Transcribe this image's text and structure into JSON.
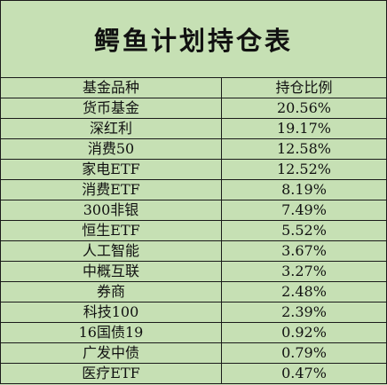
{
  "title": "鳄鱼计划持仓表",
  "headers": {
    "name": "基金品种",
    "ratio": "持仓比例"
  },
  "rows": [
    {
      "name": "货币基金",
      "ratio": "20.56%"
    },
    {
      "name": "深红利",
      "ratio": "19.17%"
    },
    {
      "name": "消费50",
      "ratio": "12.58%"
    },
    {
      "name": "家电ETF",
      "ratio": "12.52%"
    },
    {
      "name": "消费ETF",
      "ratio": "8.19%"
    },
    {
      "name": "300非银",
      "ratio": "7.49%"
    },
    {
      "name": "恒生ETF",
      "ratio": "5.52%"
    },
    {
      "name": "人工智能",
      "ratio": "3.67%"
    },
    {
      "name": "中概互联",
      "ratio": "3.27%"
    },
    {
      "name": "券商",
      "ratio": "2.48%"
    },
    {
      "name": "科技100",
      "ratio": "2.39%"
    },
    {
      "name": "16国债19",
      "ratio": "0.92%"
    },
    {
      "name": "广发中债",
      "ratio": "0.79%"
    },
    {
      "name": "医疗ETF",
      "ratio": "0.47%"
    }
  ],
  "colors": {
    "background": "#c6e0b4",
    "border": "#1a1a1a"
  }
}
